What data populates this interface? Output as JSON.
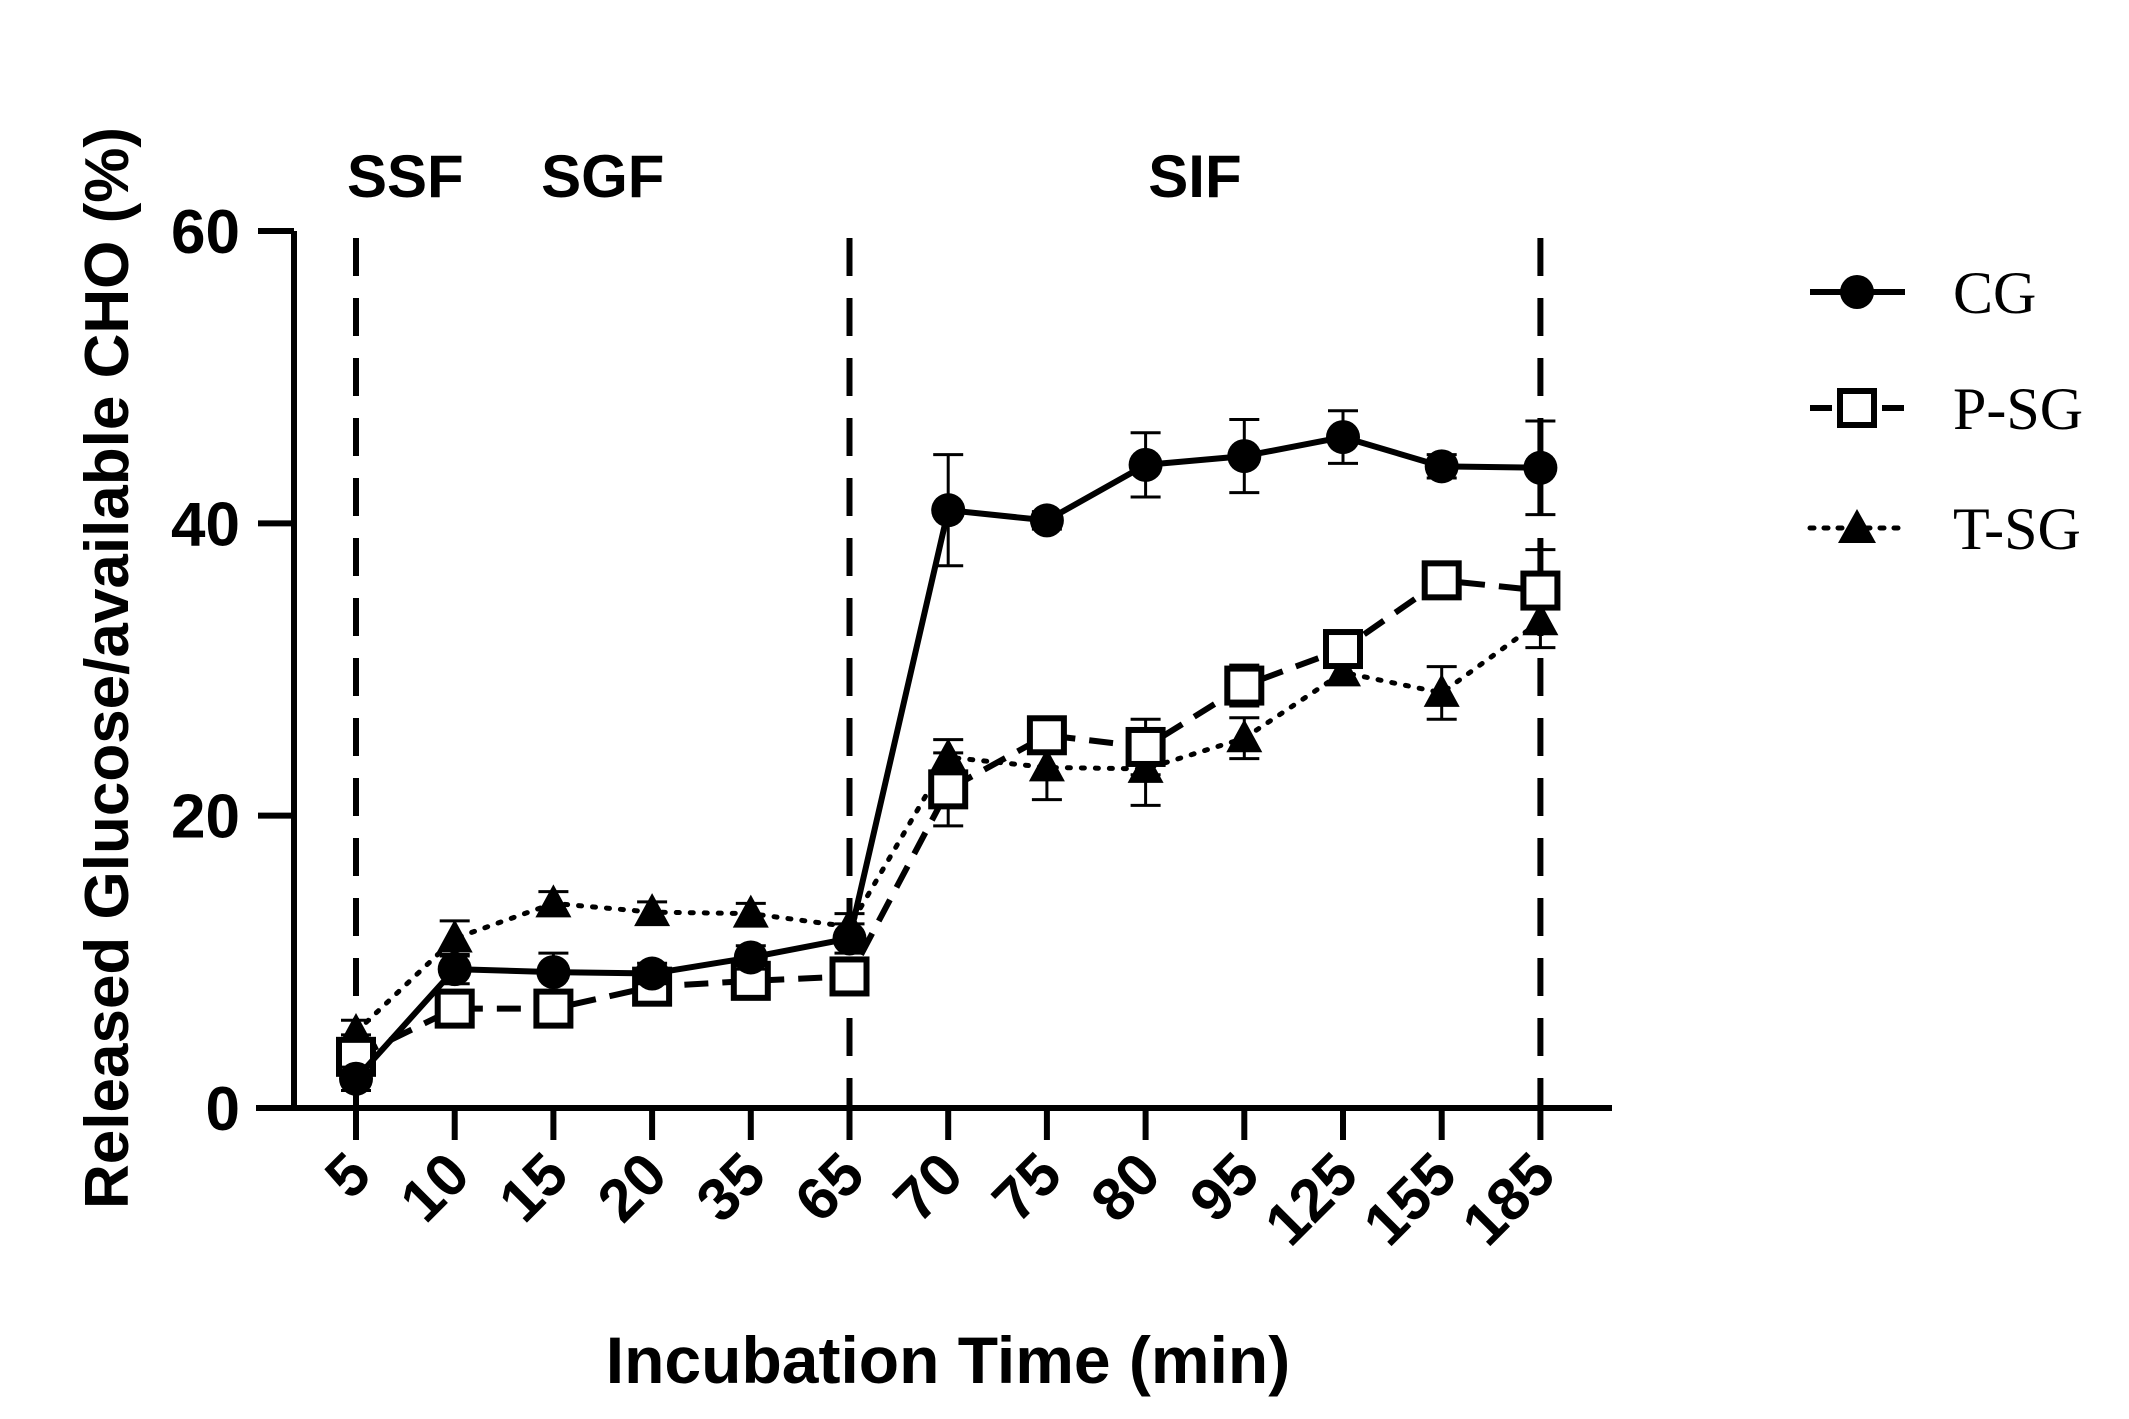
{
  "chart_data": {
    "type": "line",
    "title": "",
    "xlabel": "Incubation Time (min)",
    "ylabel": "Released Glucose/available CHO (%)",
    "categories": [
      "5",
      "10",
      "15",
      "20",
      "35",
      "65",
      "70",
      "75",
      "80",
      "95",
      "125",
      "155",
      "185"
    ],
    "ylim": [
      0,
      60
    ],
    "yticks": [
      0,
      20,
      40,
      60
    ],
    "grid": false,
    "legend_position": "right",
    "phases": [
      {
        "label": "SSF",
        "from_category": "5",
        "to_category": "10"
      },
      {
        "label": "SGF",
        "from_category": "10",
        "to_category": "35"
      },
      {
        "label": "SIF",
        "from_category": "70",
        "to_category": "155"
      }
    ],
    "phase_boundaries": [
      "5",
      "65",
      "185"
    ],
    "series": [
      {
        "name": "CG",
        "marker": "circle-filled",
        "line": "solid",
        "values": [
          2,
          9.5,
          9.3,
          9.2,
          10.3,
          11.6,
          40.9,
          40.2,
          44.0,
          44.6,
          45.9,
          43.9,
          43.8
        ],
        "errors": [
          0.8,
          1.0,
          1.3,
          0.7,
          0.8,
          1.0,
          3.8,
          0.6,
          2.2,
          2.5,
          1.8,
          0.8,
          3.2
        ]
      },
      {
        "name": "P-SG",
        "marker": "square-open",
        "line": "dashed",
        "values": [
          3.5,
          6.8,
          6.8,
          8.3,
          8.7,
          9.0,
          21.8,
          25.5,
          24.7,
          28.9,
          31.4,
          36.1,
          35.4
        ],
        "errors": [
          1.5,
          0.9,
          0.7,
          0.9,
          0.9,
          0.8,
          2.5,
          1.0,
          1.9,
          1.4,
          1.2,
          0.7,
          2.8
        ]
      },
      {
        "name": "T-SG",
        "marker": "triangle-filled",
        "line": "dotted",
        "values": [
          5.2,
          11.6,
          14.0,
          13.4,
          13.3,
          12.4,
          24.0,
          23.3,
          23.2,
          25.3,
          29.8,
          28.4,
          33.3
        ],
        "errors": [
          0.8,
          1.2,
          0.8,
          0.7,
          0.7,
          0.9,
          1.2,
          2.2,
          2.5,
          1.4,
          0.8,
          1.8,
          1.8
        ]
      }
    ]
  }
}
